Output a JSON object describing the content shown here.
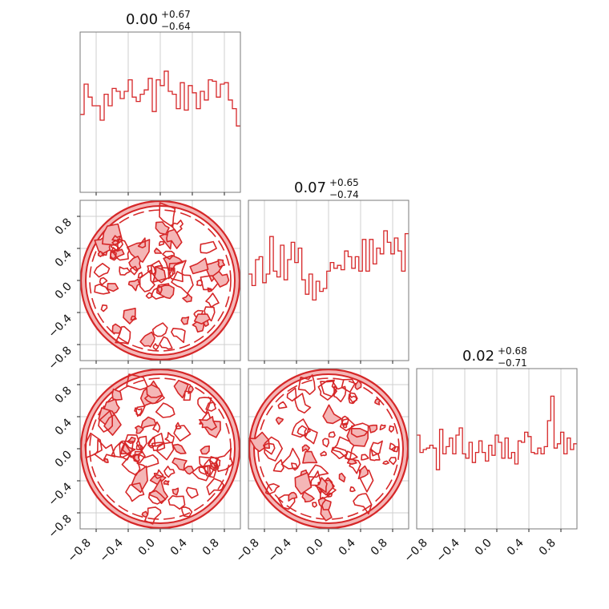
{
  "chart_data": {
    "type": "corner",
    "parameters": 3,
    "axis_range": [
      -1.0,
      1.0
    ],
    "tick_values": [
      -0.8,
      -0.4,
      0.0,
      0.4,
      0.8
    ],
    "tick_labels": [
      "−0.8",
      "−0.4",
      "0.0",
      "0.4",
      "0.8"
    ],
    "grid": true,
    "line_color": "#d62728",
    "fill_color": "#f4b6b6",
    "marginals": [
      {
        "title_value": "0.00",
        "title_plus": "+0.67",
        "title_minus": "−0.64",
        "bin_edges_range": [
          -1.0,
          1.0
        ],
        "counts": [
          0.54,
          0.75,
          0.66,
          0.6,
          0.6,
          0.5,
          0.68,
          0.6,
          0.72,
          0.7,
          0.65,
          0.7,
          0.78,
          0.66,
          0.63,
          0.68,
          0.71,
          0.79,
          0.56,
          0.78,
          0.74,
          0.84,
          0.7,
          0.68,
          0.58,
          0.76,
          0.57,
          0.74,
          0.69,
          0.58,
          0.7,
          0.64,
          0.78,
          0.77,
          0.66,
          0.75,
          0.76,
          0.64,
          0.58,
          0.46
        ]
      },
      {
        "title_value": "0.07",
        "title_plus": "+0.65",
        "title_minus": "−0.74",
        "bin_edges_range": [
          -1.0,
          1.0
        ],
        "counts": [
          0.6,
          0.52,
          0.7,
          0.72,
          0.54,
          0.6,
          0.86,
          0.62,
          0.58,
          0.8,
          0.56,
          0.7,
          0.82,
          0.68,
          0.78,
          0.56,
          0.46,
          0.6,
          0.42,
          0.55,
          0.48,
          0.5,
          0.62,
          0.68,
          0.64,
          0.66,
          0.63,
          0.76,
          0.72,
          0.64,
          0.72,
          0.62,
          0.84,
          0.62,
          0.84,
          0.67,
          0.78,
          0.74,
          0.9,
          0.82,
          0.74,
          0.85,
          0.76,
          0.62,
          0.88
        ]
      },
      {
        "title_value": "0.02",
        "title_plus": "+0.68",
        "title_minus": "−0.71",
        "bin_edges_range": [
          -1.0,
          1.0
        ],
        "counts": [
          0.65,
          0.53,
          0.55,
          0.56,
          0.58,
          0.56,
          0.41,
          0.69,
          0.52,
          0.57,
          0.63,
          0.52,
          0.65,
          0.7,
          0.52,
          0.49,
          0.6,
          0.46,
          0.53,
          0.61,
          0.53,
          0.47,
          0.58,
          0.51,
          0.65,
          0.6,
          0.49,
          0.63,
          0.49,
          0.53,
          0.45,
          0.61,
          0.6,
          0.67,
          0.64,
          0.53,
          0.52,
          0.56,
          0.52,
          0.57,
          0.75,
          0.92,
          0.56,
          0.59,
          0.67,
          0.52,
          0.63,
          0.55,
          0.59
        ]
      }
    ],
    "joint_panels": [
      {
        "row": 1,
        "col": 0,
        "x_param": 0,
        "y_param": 1,
        "support": "uniform disk, radius 1",
        "levels": 3
      },
      {
        "row": 2,
        "col": 0,
        "x_param": 0,
        "y_param": 2,
        "support": "uniform disk, radius 1",
        "levels": 3
      },
      {
        "row": 2,
        "col": 1,
        "x_param": 1,
        "y_param": 2,
        "support": "uniform disk, radius 1",
        "levels": 3
      }
    ]
  }
}
